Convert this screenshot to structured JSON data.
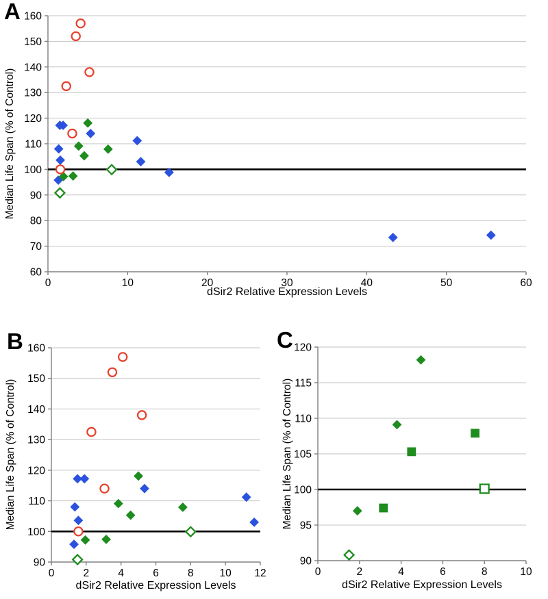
{
  "colors": {
    "blue": "#2B52DE",
    "green": "#1E8C1E",
    "red": "#E8402C",
    "gridline": "#C3C3C3",
    "axis": "#808080",
    "reference_line": "#000000"
  },
  "chart_data": [
    {
      "panel_label": "A",
      "type": "scatter",
      "xlabel": "dSir2 Relative Expression Levels",
      "ylabel": "Median Life Span (% of Control)",
      "xlim": [
        0,
        60
      ],
      "ylim": [
        60,
        160
      ],
      "xticks": [
        0,
        10,
        20,
        30,
        40,
        50,
        60
      ],
      "yticks": [
        60,
        70,
        80,
        90,
        100,
        110,
        120,
        130,
        140,
        150,
        160
      ],
      "grid": "horizontal",
      "legend": "none",
      "reference_line_y": 100,
      "series": [
        {
          "name": "blue filled diamonds",
          "marker": "diamond",
          "color": "#2B52DE",
          "filled": true,
          "points": [
            [
              1.5,
              117.2
            ],
            [
              1.9,
              117.2
            ],
            [
              1.35,
              108
            ],
            [
              1.55,
              103.6
            ],
            [
              1.3,
              95.8
            ],
            [
              5.35,
              114
            ],
            [
              11.2,
              111.2
            ],
            [
              11.65,
              103
            ],
            [
              15.2,
              98.8
            ],
            [
              43.3,
              73.4
            ],
            [
              55.6,
              74.3
            ]
          ]
        },
        {
          "name": "green filled diamonds",
          "marker": "diamond",
          "color": "#1E8C1E",
          "filled": true,
          "points": [
            [
              1.95,
              97.2
            ],
            [
              3.15,
              97.4
            ],
            [
              3.85,
              109.1
            ],
            [
              4.55,
              105.3
            ],
            [
              5.0,
              118.1
            ],
            [
              7.55,
              107.9
            ]
          ]
        },
        {
          "name": "green open diamonds",
          "marker": "diamond",
          "color": "#1E8C1E",
          "filled": false,
          "points": [
            [
              1.5,
              90.8
            ],
            [
              8.0,
              99.9
            ]
          ]
        },
        {
          "name": "red open circles",
          "marker": "circle",
          "color": "#E8402C",
          "filled": false,
          "points": [
            [
              1.55,
              100
            ],
            [
              2.3,
              132.5
            ],
            [
              3.05,
              114
            ],
            [
              3.5,
              152
            ],
            [
              4.1,
              157
            ],
            [
              5.2,
              138
            ]
          ]
        }
      ]
    },
    {
      "panel_label": "B",
      "type": "scatter",
      "xlabel": "dSir2 Relative Expression Levels",
      "ylabel": "Median Life Span (% of Control)",
      "xlim": [
        0,
        12
      ],
      "ylim": [
        90,
        160
      ],
      "xticks": [
        0,
        2,
        4,
        6,
        8,
        10,
        12
      ],
      "yticks": [
        90,
        100,
        110,
        120,
        130,
        140,
        150,
        160
      ],
      "grid": "horizontal",
      "legend": "none",
      "reference_line_y": 100,
      "series": [
        {
          "name": "blue filled diamonds",
          "marker": "diamond",
          "color": "#2B52DE",
          "filled": true,
          "points": [
            [
              1.5,
              117.2
            ],
            [
              1.9,
              117.2
            ],
            [
              1.35,
              108
            ],
            [
              1.55,
              103.6
            ],
            [
              1.3,
              95.8
            ],
            [
              5.35,
              114
            ],
            [
              11.2,
              111.2
            ],
            [
              11.65,
              103
            ]
          ]
        },
        {
          "name": "green filled diamonds",
          "marker": "diamond",
          "color": "#1E8C1E",
          "filled": true,
          "points": [
            [
              1.95,
              97.2
            ],
            [
              3.15,
              97.4
            ],
            [
              3.85,
              109.1
            ],
            [
              4.55,
              105.3
            ],
            [
              5.0,
              118.1
            ],
            [
              7.55,
              107.9
            ]
          ]
        },
        {
          "name": "green open diamonds",
          "marker": "diamond",
          "color": "#1E8C1E",
          "filled": false,
          "points": [
            [
              1.5,
              90.8
            ],
            [
              8.0,
              99.9
            ]
          ]
        },
        {
          "name": "red open circles",
          "marker": "circle",
          "color": "#E8402C",
          "filled": false,
          "points": [
            [
              1.55,
              100
            ],
            [
              2.3,
              132.5
            ],
            [
              3.05,
              114
            ],
            [
              3.5,
              152
            ],
            [
              4.1,
              157
            ],
            [
              5.2,
              138
            ]
          ]
        }
      ]
    },
    {
      "panel_label": "C",
      "type": "scatter",
      "xlabel": "dSir2 Relative Expression Levels",
      "ylabel": "Median Life Span (% of Control)",
      "xlim": [
        0,
        10
      ],
      "ylim": [
        90,
        120
      ],
      "xticks": [
        0,
        2,
        4,
        6,
        8,
        10
      ],
      "yticks": [
        90,
        95,
        100,
        105,
        110,
        115,
        120
      ],
      "grid": "horizontal",
      "legend": "none",
      "reference_line_y": 100,
      "series": [
        {
          "name": "green filled diamonds",
          "marker": "diamond",
          "color": "#1E8C1E",
          "filled": true,
          "points": [
            [
              1.9,
              97
            ],
            [
              3.8,
              109.1
            ],
            [
              4.95,
              118.2
            ]
          ]
        },
        {
          "name": "green filled squares",
          "marker": "square",
          "color": "#1E8C1E",
          "filled": true,
          "points": [
            [
              3.15,
              97.4
            ],
            [
              4.5,
              105.3
            ],
            [
              7.55,
              107.9
            ]
          ]
        },
        {
          "name": "green open diamond",
          "marker": "diamond",
          "color": "#1E8C1E",
          "filled": false,
          "points": [
            [
              1.5,
              90.8
            ]
          ]
        },
        {
          "name": "green open square",
          "marker": "square",
          "color": "#1E8C1E",
          "filled": false,
          "points": [
            [
              8.0,
              100.1
            ]
          ]
        }
      ]
    }
  ]
}
